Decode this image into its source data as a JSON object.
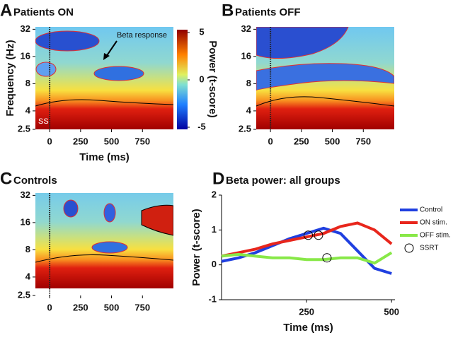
{
  "chart_data": [
    {
      "type": "heatmap",
      "panel_label": "A",
      "title": "Patients ON",
      "xlabel": "Time (ms)",
      "ylabel": "Frequency (Hz)",
      "xlim": [
        -115,
        1000
      ],
      "xticks": [
        0,
        250,
        500,
        750
      ],
      "ylim": [
        2.5,
        34
      ],
      "yticks": [
        32,
        16,
        8,
        4,
        2.5
      ],
      "log_y": true,
      "annotations": [
        "Beta response",
        "SS"
      ],
      "colorbar": {
        "label": "Power (t-score)",
        "lim": [
          -5,
          5
        ],
        "ticks": [
          5,
          0,
          -5
        ]
      }
    },
    {
      "type": "heatmap",
      "panel_label": "B",
      "title": "Patients OFF",
      "xlim": [
        -115,
        1000
      ],
      "xticks": [
        0,
        250,
        500,
        750
      ],
      "ylim": [
        2.5,
        34
      ],
      "yticks": [
        32,
        16,
        8,
        4,
        2.5
      ],
      "log_y": true
    },
    {
      "type": "heatmap",
      "panel_label": "C",
      "title": "Controls",
      "xlim": [
        -115,
        1000
      ],
      "xticks": [
        0,
        250,
        500,
        750
      ],
      "ylim": [
        2.5,
        34
      ],
      "yticks": [
        32,
        16,
        8,
        4,
        2.5
      ],
      "log_y": true
    },
    {
      "type": "line",
      "panel_label": "D",
      "title": "Beta power: all groups",
      "xlabel": "Time (ms)",
      "ylabel": "Power (t-score)",
      "xlim": [
        0,
        510
      ],
      "xticks": [
        250,
        500
      ],
      "ylim": [
        -1,
        2
      ],
      "yticks": [
        -1,
        0,
        1,
        2
      ],
      "x": [
        0,
        50,
        100,
        150,
        200,
        250,
        300,
        350,
        400,
        450,
        500
      ],
      "series": [
        {
          "name": "Control",
          "color": "#1f3fe0",
          "values": [
            0.1,
            0.2,
            0.35,
            0.55,
            0.75,
            0.9,
            1.05,
            0.9,
            0.4,
            -0.1,
            -0.25
          ]
        },
        {
          "name": "ON stim.",
          "color": "#e8261c",
          "values": [
            0.25,
            0.35,
            0.45,
            0.6,
            0.7,
            0.8,
            0.9,
            1.1,
            1.2,
            1.0,
            0.6
          ]
        },
        {
          "name": "OFF stim.",
          "color": "#88e848",
          "values": [
            0.25,
            0.3,
            0.25,
            0.2,
            0.2,
            0.15,
            0.15,
            0.2,
            0.2,
            0.05,
            0.35
          ]
        }
      ],
      "markers": {
        "name": "SSRT",
        "x": [
          255,
          285,
          310
        ],
        "values": [
          0.85,
          0.85,
          0.2
        ]
      }
    }
  ]
}
